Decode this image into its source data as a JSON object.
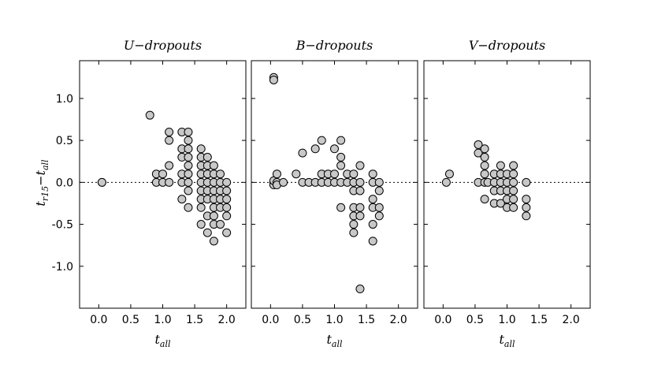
{
  "figure": {
    "ylabel": {
      "main": "t",
      "sub1": "r15",
      "minus": "−",
      "main2": "t",
      "sub2": "all"
    },
    "xlabel": {
      "main": "t",
      "sub": "all"
    }
  },
  "chart_data": [
    {
      "type": "scatter",
      "title": "U−dropouts",
      "xlim": [
        -0.3,
        2.3
      ],
      "ylim": [
        -1.5,
        1.45
      ],
      "xticks": [
        0.0,
        0.5,
        1.0,
        1.5,
        2.0
      ],
      "xtick_labels": [
        "0.0",
        "0.5",
        "1.0",
        "1.5",
        "2.0"
      ],
      "yticks": [
        1.0,
        0.5,
        0.0,
        -0.5,
        -1.0
      ],
      "ytick_labels": [
        "1.0",
        "0.5",
        "0.0",
        "-0.5",
        "-1.0"
      ],
      "reference_line_y": 0,
      "points": [
        [
          0.05,
          0
        ],
        [
          0.05,
          0
        ],
        [
          0.8,
          0.8
        ],
        [
          0.9,
          0.1
        ],
        [
          0.9,
          0
        ],
        [
          1.0,
          0.1
        ],
        [
          1.0,
          0
        ],
        [
          1.1,
          0.6
        ],
        [
          1.1,
          0.5
        ],
        [
          1.1,
          0.2
        ],
        [
          1.1,
          0
        ],
        [
          1.3,
          0.6
        ],
        [
          1.3,
          0.4
        ],
        [
          1.3,
          0.3
        ],
        [
          1.3,
          0.1
        ],
        [
          1.3,
          0
        ],
        [
          1.3,
          -0.2
        ],
        [
          1.4,
          0.6
        ],
        [
          1.4,
          0.5
        ],
        [
          1.4,
          0.4
        ],
        [
          1.4,
          0.3
        ],
        [
          1.4,
          0.2
        ],
        [
          1.4,
          0.1
        ],
        [
          1.4,
          0
        ],
        [
          1.4,
          -0.1
        ],
        [
          1.4,
          -0.3
        ],
        [
          1.6,
          0.4
        ],
        [
          1.6,
          0.3
        ],
        [
          1.6,
          0.2
        ],
        [
          1.6,
          0.1
        ],
        [
          1.6,
          0
        ],
        [
          1.6,
          -0.1
        ],
        [
          1.6,
          -0.2
        ],
        [
          1.6,
          -0.3
        ],
        [
          1.6,
          -0.5
        ],
        [
          1.7,
          0.3
        ],
        [
          1.7,
          0.2
        ],
        [
          1.7,
          0.1
        ],
        [
          1.7,
          0
        ],
        [
          1.7,
          -0.1
        ],
        [
          1.7,
          -0.2
        ],
        [
          1.7,
          -0.4
        ],
        [
          1.7,
          -0.6
        ],
        [
          1.8,
          0.2
        ],
        [
          1.8,
          0.1
        ],
        [
          1.8,
          0
        ],
        [
          1.8,
          -0.1
        ],
        [
          1.8,
          -0.2
        ],
        [
          1.8,
          -0.3
        ],
        [
          1.8,
          -0.4
        ],
        [
          1.8,
          -0.5
        ],
        [
          1.8,
          -0.7
        ],
        [
          1.9,
          0.1
        ],
        [
          1.9,
          0
        ],
        [
          1.9,
          -0.1
        ],
        [
          1.9,
          -0.2
        ],
        [
          1.9,
          -0.3
        ],
        [
          1.9,
          -0.5
        ],
        [
          2.0,
          0
        ],
        [
          2.0,
          -0.1
        ],
        [
          2.0,
          -0.2
        ],
        [
          2.0,
          -0.3
        ],
        [
          2.0,
          -0.4
        ],
        [
          2.0,
          -0.6
        ]
      ]
    },
    {
      "type": "scatter",
      "title": "B−dropouts",
      "xlim": [
        -0.3,
        2.3
      ],
      "ylim": [
        -1.5,
        1.45
      ],
      "xticks": [
        0.0,
        0.5,
        1.0,
        1.5,
        2.0
      ],
      "xtick_labels": [
        "0.0",
        "0.5",
        "1.0",
        "1.5",
        "2.0"
      ],
      "yticks": [
        1.0,
        0.5,
        0.0,
        -0.5,
        -1.0
      ],
      "ytick_labels": [],
      "reference_line_y": 0,
      "points": [
        [
          0.05,
          1.25
        ],
        [
          0.05,
          1.22
        ],
        [
          0.05,
          0
        ],
        [
          0.05,
          -0.03
        ],
        [
          0.05,
          0.02
        ],
        [
          0.1,
          0.1
        ],
        [
          0.1,
          0
        ],
        [
          0.1,
          -0.03
        ],
        [
          0.2,
          0
        ],
        [
          0.4,
          0.1
        ],
        [
          0.5,
          0.35
        ],
        [
          0.5,
          0
        ],
        [
          0.6,
          0
        ],
        [
          0.7,
          0.4
        ],
        [
          0.7,
          0
        ],
        [
          0.8,
          0.5
        ],
        [
          0.8,
          0.1
        ],
        [
          0.8,
          0
        ],
        [
          0.9,
          0.1
        ],
        [
          0.9,
          0
        ],
        [
          1.0,
          0.4
        ],
        [
          1.0,
          0.1
        ],
        [
          1.0,
          0
        ],
        [
          1.1,
          0.5
        ],
        [
          1.1,
          0.3
        ],
        [
          1.1,
          0.2
        ],
        [
          1.1,
          0
        ],
        [
          1.1,
          -0.3
        ],
        [
          1.2,
          0.1
        ],
        [
          1.2,
          0
        ],
        [
          1.3,
          0.1
        ],
        [
          1.3,
          0
        ],
        [
          1.3,
          -0.1
        ],
        [
          1.3,
          -0.3
        ],
        [
          1.3,
          -0.4
        ],
        [
          1.3,
          -0.5
        ],
        [
          1.3,
          -0.6
        ],
        [
          1.4,
          0.2
        ],
        [
          1.4,
          0
        ],
        [
          1.4,
          -0.1
        ],
        [
          1.4,
          -0.3
        ],
        [
          1.4,
          -0.4
        ],
        [
          1.4,
          -1.27
        ],
        [
          1.6,
          0.1
        ],
        [
          1.6,
          0
        ],
        [
          1.6,
          -0.2
        ],
        [
          1.6,
          -0.3
        ],
        [
          1.6,
          -0.5
        ],
        [
          1.6,
          -0.7
        ],
        [
          1.7,
          0
        ],
        [
          1.7,
          -0.1
        ],
        [
          1.7,
          -0.3
        ],
        [
          1.7,
          -0.4
        ]
      ]
    },
    {
      "type": "scatter",
      "title": "V−dropouts",
      "xlim": [
        -0.3,
        2.3
      ],
      "ylim": [
        -1.5,
        1.45
      ],
      "xticks": [
        0.0,
        0.5,
        1.0,
        1.5,
        2.0
      ],
      "xtick_labels": [
        "0.0",
        "0.5",
        "1.0",
        "1.5",
        "2.0"
      ],
      "yticks": [
        1.0,
        0.5,
        0.0,
        -0.5,
        -1.0
      ],
      "ytick_labels": [],
      "reference_line_y": 0,
      "points": [
        [
          0.05,
          0
        ],
        [
          0.1,
          0.1
        ],
        [
          0.55,
          0.45
        ],
        [
          0.55,
          0.35
        ],
        [
          0.55,
          0
        ],
        [
          0.65,
          0.4
        ],
        [
          0.65,
          0.3
        ],
        [
          0.65,
          0.2
        ],
        [
          0.65,
          0.1
        ],
        [
          0.65,
          0
        ],
        [
          0.65,
          -0.2
        ],
        [
          0.7,
          0
        ],
        [
          0.8,
          0.1
        ],
        [
          0.8,
          0
        ],
        [
          0.8,
          -0.1
        ],
        [
          0.8,
          -0.25
        ],
        [
          0.9,
          0.2
        ],
        [
          0.9,
          0.1
        ],
        [
          0.9,
          0
        ],
        [
          0.9,
          -0.1
        ],
        [
          0.9,
          -0.25
        ],
        [
          1.0,
          0.1
        ],
        [
          1.0,
          0
        ],
        [
          1.0,
          -0.1
        ],
        [
          1.0,
          -0.2
        ],
        [
          1.0,
          -0.3
        ],
        [
          1.1,
          0.2
        ],
        [
          1.1,
          0.1
        ],
        [
          1.1,
          0
        ],
        [
          1.1,
          -0.1
        ],
        [
          1.1,
          -0.2
        ],
        [
          1.1,
          -0.3
        ],
        [
          1.3,
          0
        ],
        [
          1.3,
          -0.2
        ],
        [
          1.3,
          -0.3
        ],
        [
          1.3,
          -0.4
        ]
      ]
    }
  ]
}
